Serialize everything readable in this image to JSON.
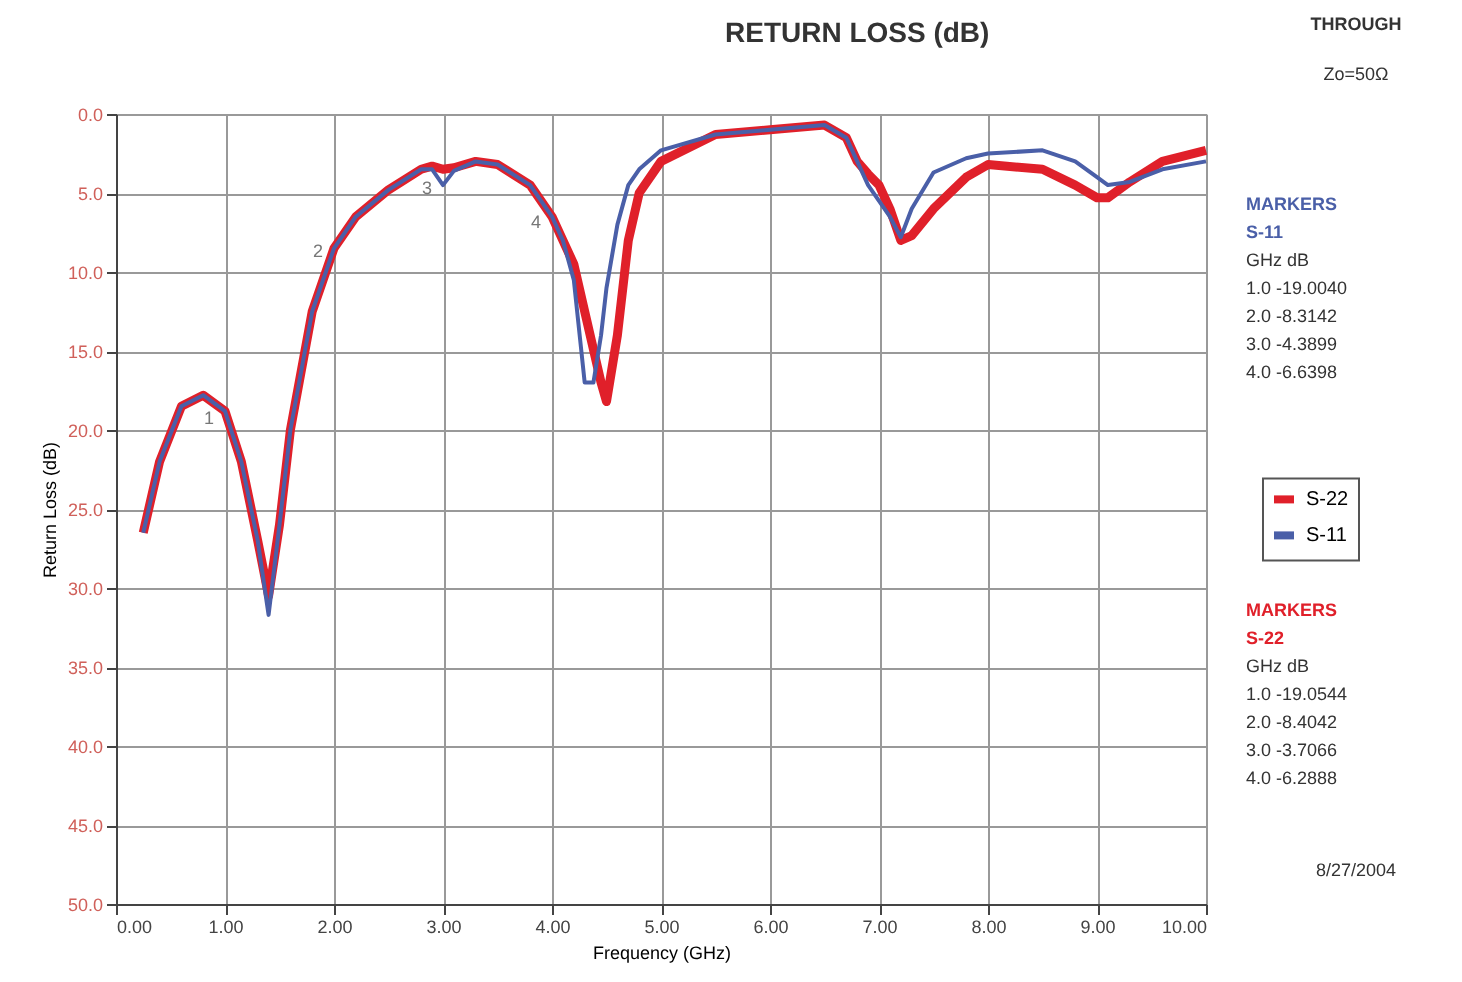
{
  "chart_data": {
    "type": "line",
    "title": "RETURN LOSS (dB)",
    "xlabel": "Frequency (GHz)",
    "ylabel": "Return Loss (dB)",
    "series": [
      {
        "name": "S-22",
        "color": "#e0202a",
        "x": [
          0.25,
          0.4,
          0.6,
          0.8,
          1.0,
          1.15,
          1.3,
          1.4,
          1.5,
          1.6,
          1.8,
          2.0,
          2.2,
          2.5,
          2.8,
          2.9,
          3.0,
          3.1,
          3.3,
          3.5,
          3.8,
          4.0,
          4.1,
          4.2,
          4.3,
          4.45,
          4.5,
          4.6,
          4.7,
          4.8,
          5.0,
          5.5,
          6.0,
          6.5,
          6.7,
          6.8,
          6.9,
          7.0,
          7.1,
          7.2,
          7.3,
          7.5,
          7.8,
          8.0,
          8.5,
          8.8,
          9.0,
          9.1,
          9.3,
          9.6,
          10.0
        ],
        "values": [
          26.5,
          22,
          18.5,
          17.8,
          18.8,
          22,
          27,
          30.5,
          26,
          20,
          12.5,
          8.5,
          6.5,
          4.8,
          3.5,
          3.3,
          3.5,
          3.4,
          3.0,
          3.2,
          4.5,
          6.5,
          8,
          9.5,
          12.5,
          17,
          18.2,
          14,
          8,
          5,
          3,
          1.3,
          1.0,
          0.7,
          1.5,
          3.0,
          3.8,
          4.5,
          6,
          8,
          7.7,
          6,
          4,
          3.2,
          3.5,
          4.5,
          5.3,
          5.3,
          4.3,
          3,
          2.3
        ]
      },
      {
        "name": "S-11",
        "color": "#4a5fa8",
        "x": [
          0.25,
          0.4,
          0.6,
          0.8,
          1.0,
          1.15,
          1.3,
          1.4,
          1.5,
          1.6,
          1.8,
          2.0,
          2.2,
          2.5,
          2.8,
          2.9,
          3.0,
          3.1,
          3.3,
          3.5,
          3.8,
          4.0,
          4.1,
          4.2,
          4.3,
          4.38,
          4.45,
          4.5,
          4.6,
          4.7,
          4.8,
          5.0,
          5.5,
          6.0,
          6.5,
          6.7,
          6.8,
          6.9,
          7.0,
          7.1,
          7.2,
          7.3,
          7.5,
          7.8,
          8.0,
          8.5,
          8.8,
          9.0,
          9.1,
          9.3,
          9.6,
          10.0
        ],
        "values": [
          26.5,
          22,
          18.5,
          17.8,
          18.8,
          22,
          27,
          31.7,
          26,
          20,
          12.5,
          8.5,
          6.5,
          4.8,
          3.5,
          3.5,
          4.5,
          3.6,
          3.0,
          3.2,
          4.5,
          6.5,
          8,
          10.5,
          17,
          17,
          14,
          11,
          7,
          4.5,
          3.5,
          2.3,
          1.3,
          1.0,
          0.7,
          1.5,
          3.0,
          4.5,
          5.5,
          6.5,
          7.8,
          6,
          3.7,
          2.8,
          2.5,
          2.3,
          3.0,
          4,
          4.5,
          4.3,
          3.5,
          3
        ]
      }
    ],
    "xlim": [
      0,
      10
    ],
    "ylim": [
      50,
      0
    ],
    "xticks": [
      {
        "value": 0,
        "label": "0.00"
      },
      {
        "value": 1,
        "label": "1.00"
      },
      {
        "value": 2,
        "label": "2.00"
      },
      {
        "value": 3,
        "label": "3.00"
      },
      {
        "value": 4,
        "label": "4.00"
      },
      {
        "value": 5,
        "label": "5.00"
      },
      {
        "value": 6,
        "label": "6.00"
      },
      {
        "value": 7,
        "label": "7.00"
      },
      {
        "value": 8,
        "label": "8.00"
      },
      {
        "value": 9,
        "label": "9.00"
      },
      {
        "value": 10,
        "label": "10.00"
      }
    ],
    "yticks": [
      {
        "value": 0,
        "label": "0.0"
      },
      {
        "value": 5,
        "label": "5.0"
      },
      {
        "value": 10,
        "label": "10.0"
      },
      {
        "value": 15,
        "label": "15.0"
      },
      {
        "value": 20,
        "label": "20.0"
      },
      {
        "value": 25,
        "label": "25.0"
      },
      {
        "value": 30,
        "label": "30.0"
      },
      {
        "value": 35,
        "label": "35.0"
      },
      {
        "value": 40,
        "label": "40.0"
      },
      {
        "value": 45,
        "label": "45.0"
      },
      {
        "value": 50,
        "label": "50.0"
      }
    ],
    "grid": true,
    "legend": "right",
    "marker": "none",
    "line_style": "solid",
    "annotations": [
      {
        "text": "1",
        "x": 1.0,
        "y": 19.0
      },
      {
        "text": "2",
        "x": 2.0,
        "y": 8.4
      },
      {
        "text": "3",
        "x": 3.0,
        "y": 4.4
      },
      {
        "text": "4",
        "x": 4.0,
        "y": 6.6
      },
      "THROUGH",
      "Zo=50Ω",
      "MARKERS",
      "S-11",
      "GHz      dB",
      "1.0    -19.0040",
      "2.0    -8.3142",
      "3.0    -4.3899",
      "4.0    -6.6398",
      "MARKERS",
      "S-22",
      "GHz      dB",
      "1.0    -19.0544",
      "2.0    -8.4042",
      "3.0    -3.7066",
      "4.0    -6.2888",
      "8/27/2004"
    ]
  }
}
